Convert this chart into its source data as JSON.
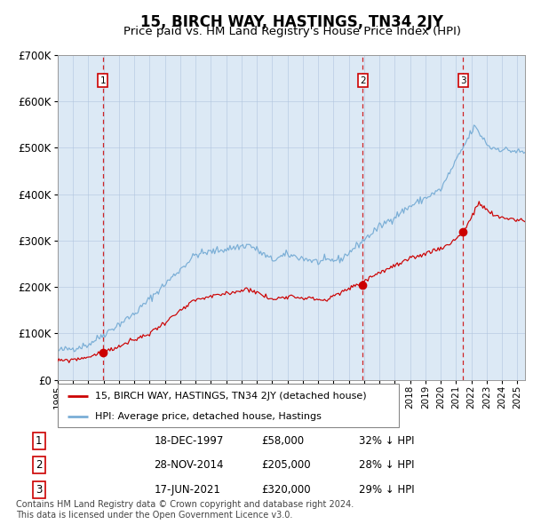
{
  "title": "15, BIRCH WAY, HASTINGS, TN34 2JY",
  "subtitle": "Price paid vs. HM Land Registry's House Price Index (HPI)",
  "title_fontsize": 12,
  "subtitle_fontsize": 9.5,
  "background_color": "#ffffff",
  "plot_bg_color": "#dce9f5",
  "ylim": [
    0,
    700000
  ],
  "yticks": [
    0,
    100000,
    200000,
    300000,
    400000,
    500000,
    600000,
    700000
  ],
  "xlim_start": 1995.0,
  "xlim_end": 2025.5,
  "sale_dates": [
    1997.96,
    2014.91,
    2021.46
  ],
  "sale_prices": [
    58000,
    205000,
    320000
  ],
  "sale_labels": [
    "1",
    "2",
    "3"
  ],
  "legend_entries": [
    "15, BIRCH WAY, HASTINGS, TN34 2JY (detached house)",
    "HPI: Average price, detached house, Hastings"
  ],
  "red_line_color": "#cc0000",
  "blue_line_color": "#7aaed6",
  "sale_marker_color": "#cc0000",
  "vline_color": "#cc0000",
  "grid_color": "#b0c4de",
  "table_data": [
    [
      "1",
      "18-DEC-1997",
      "£58,000",
      "32% ↓ HPI"
    ],
    [
      "2",
      "28-NOV-2014",
      "£205,000",
      "28% ↓ HPI"
    ],
    [
      "3",
      "17-JUN-2021",
      "£320,000",
      "29% ↓ HPI"
    ]
  ],
  "footnote": "Contains HM Land Registry data © Crown copyright and database right 2024.\nThis data is licensed under the Open Government Licence v3.0.",
  "footnote_fontsize": 7
}
